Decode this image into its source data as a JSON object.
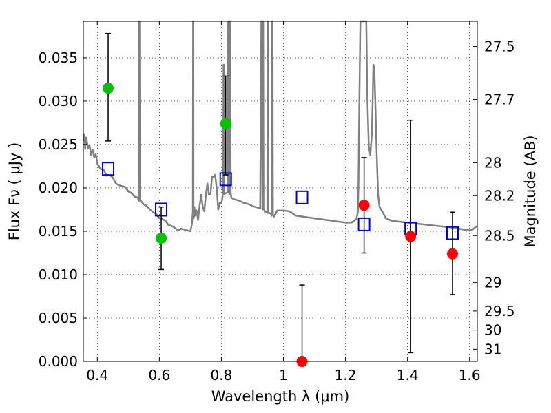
{
  "chart_data": {
    "type": "scatter",
    "xlabel": "Wavelength  λ (μm)",
    "ylabel": "Flux  Fν  ( μJy )",
    "y2label": "Magnitude (AB)",
    "xlim": [
      0.355,
      1.625
    ],
    "ylim": [
      0.0,
      0.0392
    ],
    "x_ticks": [
      0.4,
      0.6,
      0.8,
      1.0,
      1.2,
      1.4,
      1.6
    ],
    "x_tick_labels": [
      "0.4",
      "0.6",
      "0.8",
      "1",
      "1.2",
      "1.4",
      "1.6"
    ],
    "y_ticks": [
      0.0,
      0.005,
      0.01,
      0.015,
      0.02,
      0.025,
      0.03,
      0.035
    ],
    "y_tick_labels": [
      "0.000",
      "0.005",
      "0.010",
      "0.015",
      "0.020",
      "0.025",
      "0.030",
      "0.035"
    ],
    "y2_ticks": [
      {
        "label": "27.5",
        "flux": 0.0363
      },
      {
        "label": "27.7",
        "flux": 0.0302
      },
      {
        "label": "28",
        "flux": 0.0229
      },
      {
        "label": "28.2",
        "flux": 0.0191
      },
      {
        "label": "28.5",
        "flux": 0.0145
      },
      {
        "label": "29",
        "flux": 0.0091
      },
      {
        "label": "29.5",
        "flux": 0.0058
      },
      {
        "label": "30",
        "flux": 0.0036
      },
      {
        "label": "31",
        "flux": 0.0014
      }
    ],
    "grid": true,
    "colors": {
      "optical": "#00c000",
      "nir": "#ff0000",
      "model": "#0000cc",
      "spectrum": "#808080",
      "errorbar": "#000000"
    },
    "observed_optical": [
      {
        "x": 0.435,
        "y": 0.0315,
        "err_low": 0.0254,
        "err_high": 0.0378
      },
      {
        "x": 0.606,
        "y": 0.0142,
        "err_low": 0.0106,
        "err_high": 0.0178
      },
      {
        "x": 0.814,
        "y": 0.0274,
        "err_low": 0.0215,
        "err_high": 0.0329
      }
    ],
    "observed_nir": [
      {
        "x": 1.06,
        "y": 0.0,
        "err_low": 0.0,
        "err_high": 0.0088
      },
      {
        "x": 1.26,
        "y": 0.018,
        "err_low": 0.0125,
        "err_high": 0.0235
      },
      {
        "x": 1.41,
        "y": 0.0144,
        "err_low": 0.001,
        "err_high": 0.0278
      },
      {
        "x": 1.545,
        "y": 0.0124,
        "err_low": 0.0077,
        "err_high": 0.0172
      }
    ],
    "model_photometry": [
      {
        "x": 0.435,
        "y": 0.0222
      },
      {
        "x": 0.606,
        "y": 0.0175
      },
      {
        "x": 0.814,
        "y": 0.021
      },
      {
        "x": 1.06,
        "y": 0.0189
      },
      {
        "x": 1.26,
        "y": 0.0158
      },
      {
        "x": 1.41,
        "y": 0.0153
      },
      {
        "x": 1.545,
        "y": 0.0148
      }
    ],
    "model_spectrum": {
      "x": [
        0.355,
        0.358,
        0.361,
        0.364,
        0.367,
        0.37,
        0.375,
        0.38,
        0.385,
        0.39,
        0.395,
        0.4,
        0.41,
        0.42,
        0.43,
        0.44,
        0.45,
        0.46,
        0.47,
        0.48,
        0.49,
        0.5,
        0.51,
        0.52,
        0.53,
        0.534,
        0.535,
        0.536,
        0.537,
        0.538,
        0.545,
        0.55,
        0.56,
        0.57,
        0.58,
        0.59,
        0.6,
        0.61,
        0.62,
        0.63,
        0.64,
        0.65,
        0.66,
        0.67,
        0.68,
        0.69,
        0.7,
        0.705,
        0.708,
        0.709,
        0.7095,
        0.71,
        0.711,
        0.713,
        0.716,
        0.72,
        0.725,
        0.73,
        0.735,
        0.74,
        0.745,
        0.75,
        0.755,
        0.76,
        0.765,
        0.77,
        0.775,
        0.78,
        0.785,
        0.79,
        0.795,
        0.8,
        0.803,
        0.806,
        0.807,
        0.808,
        0.809,
        0.81,
        0.82,
        0.822,
        0.823,
        0.824,
        0.825,
        0.826,
        0.828,
        0.829,
        0.83,
        0.831,
        0.832,
        0.835,
        0.84,
        0.85,
        0.86,
        0.87,
        0.88,
        0.89,
        0.9,
        0.91,
        0.92,
        0.925,
        0.929,
        0.931,
        0.932,
        0.933,
        0.935,
        0.937,
        0.938,
        0.939,
        0.94,
        0.945,
        0.948,
        0.949,
        0.95,
        0.951,
        0.952,
        0.955,
        0.96,
        0.962,
        0.964,
        0.965,
        0.966,
        0.968,
        0.97,
        0.98,
        1.0,
        1.02,
        1.04,
        1.06,
        1.08,
        1.1,
        1.12,
        1.14,
        1.16,
        1.18,
        1.2,
        1.22,
        1.235,
        1.24,
        1.242,
        1.244,
        1.246,
        1.248,
        1.25,
        1.252,
        1.254,
        1.256,
        1.258,
        1.26,
        1.263,
        1.265,
        1.267,
        1.27,
        1.275,
        1.28,
        1.285,
        1.288,
        1.29,
        1.293,
        1.296,
        1.3,
        1.305,
        1.31,
        1.32,
        1.33,
        1.35,
        1.4,
        1.45,
        1.5,
        1.55,
        1.58,
        1.6,
        1.61,
        1.62,
        1.625
      ],
      "y": [
        0.0254,
        0.0262,
        0.0245,
        0.0258,
        0.0252,
        0.0246,
        0.0249,
        0.0238,
        0.0244,
        0.0235,
        0.0239,
        0.0228,
        0.0222,
        0.0221,
        0.0214,
        0.0215,
        0.0212,
        0.0205,
        0.0203,
        0.0202,
        0.0201,
        0.0196,
        0.0194,
        0.019,
        0.0189,
        0.0185,
        0.0392,
        0.0392,
        0.0188,
        0.0186,
        0.0183,
        0.0181,
        0.0179,
        0.0175,
        0.0172,
        0.017,
        0.0165,
        0.0164,
        0.0162,
        0.0157,
        0.0156,
        0.0154,
        0.0151,
        0.0153,
        0.0152,
        0.0151,
        0.015,
        0.0158,
        0.0172,
        0.0392,
        0.0392,
        0.0172,
        0.0165,
        0.0178,
        0.0168,
        0.0174,
        0.0163,
        0.018,
        0.0192,
        0.0178,
        0.0173,
        0.0192,
        0.0205,
        0.0192,
        0.0193,
        0.0213,
        0.0212,
        0.0215,
        0.0199,
        0.0175,
        0.0183,
        0.0182,
        0.0188,
        0.0196,
        0.0342,
        0.0342,
        0.0196,
        0.0193,
        0.0195,
        0.0392,
        0.0392,
        0.0195,
        0.0194,
        0.0193,
        0.0392,
        0.0392,
        0.0194,
        0.0192,
        0.0189,
        0.0188,
        0.0187,
        0.0186,
        0.0185,
        0.0183,
        0.0182,
        0.0181,
        0.0179,
        0.0178,
        0.0177,
        0.0176,
        0.0392,
        0.0392,
        0.0176,
        0.0175,
        0.0392,
        0.0392,
        0.0175,
        0.0174,
        0.0173,
        0.0172,
        0.0171,
        0.0392,
        0.0392,
        0.0171,
        0.0172,
        0.0171,
        0.017,
        0.0168,
        0.0392,
        0.0392,
        0.0169,
        0.0168,
        0.0167,
        0.0174,
        0.0174,
        0.0173,
        0.0168,
        0.0167,
        0.0166,
        0.0165,
        0.0164,
        0.0163,
        0.0162,
        0.0161,
        0.016,
        0.016,
        0.0164,
        0.0172,
        0.0208,
        0.0276,
        0.0336,
        0.0392,
        0.0392,
        0.0392,
        0.0392,
        0.0392,
        0.0392,
        0.0392,
        0.0392,
        0.0392,
        0.0392,
        0.0312,
        0.0248,
        0.0238,
        0.0262,
        0.0305,
        0.0342,
        0.0338,
        0.0302,
        0.0248,
        0.0192,
        0.0178,
        0.0172,
        0.0165,
        0.0162,
        0.016,
        0.0158,
        0.0156,
        0.0154,
        0.0152,
        0.0151,
        0.0152,
        0.0155,
        0.0156
      ]
    }
  }
}
